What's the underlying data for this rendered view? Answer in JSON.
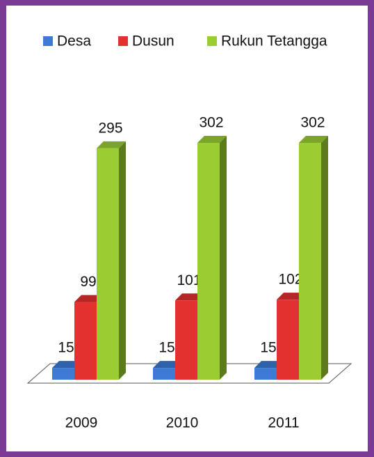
{
  "chart_data": {
    "type": "bar3d",
    "categories": [
      "2009",
      "2010",
      "2011"
    ],
    "series": [
      {
        "name": "Desa",
        "color": "#3c7ad6",
        "values": [
          15,
          15,
          15
        ]
      },
      {
        "name": "Dusun",
        "color": "#e2312f",
        "values": [
          99,
          101,
          102
        ]
      },
      {
        "name": "Rukun Tetangga",
        "color": "#9acd32",
        "values": [
          295,
          302,
          302
        ]
      }
    ],
    "legend": "top"
  }
}
